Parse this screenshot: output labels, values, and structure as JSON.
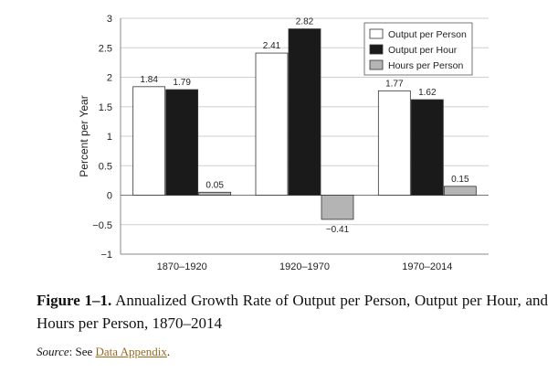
{
  "chart_data": {
    "type": "bar",
    "categories": [
      "1870–1920",
      "1920–1970",
      "1970–2014"
    ],
    "series": [
      {
        "name": "Output per Person",
        "values": [
          1.84,
          2.41,
          1.77
        ],
        "labels": [
          "1.84",
          "2.41",
          "1.77"
        ],
        "color": "#ffffff"
      },
      {
        "name": "Output per Hour",
        "values": [
          1.79,
          2.82,
          1.62
        ],
        "labels": [
          "1.79",
          "2.82",
          "1.62"
        ],
        "color": "#1a1a1a"
      },
      {
        "name": "Hours per Person",
        "values": [
          0.05,
          -0.41,
          0.15
        ],
        "labels": [
          "0.05",
          "−0.41",
          "0.15"
        ],
        "color": "#b4b4b4"
      }
    ],
    "ylabel": "Percent per Year",
    "ylim": [
      -1,
      3
    ],
    "yticks": [
      -1,
      -0.5,
      0,
      0.5,
      1,
      1.5,
      2,
      2.5,
      3
    ],
    "ytick_labels": [
      "−1",
      "−0.5",
      "0",
      "0.5",
      "1",
      "1.5",
      "2",
      "2.5",
      "3"
    ],
    "grid": true,
    "legend_position": "top-right"
  },
  "caption": {
    "figure_label": "Figure 1–1.",
    "text": "Annualized Growth Rate of Output per Person, Output per Hour, and Hours per Person, 1870–2014"
  },
  "source": {
    "label": "Source",
    "prefix": ": See ",
    "link_text": "Data Appendix",
    "suffix": "."
  }
}
